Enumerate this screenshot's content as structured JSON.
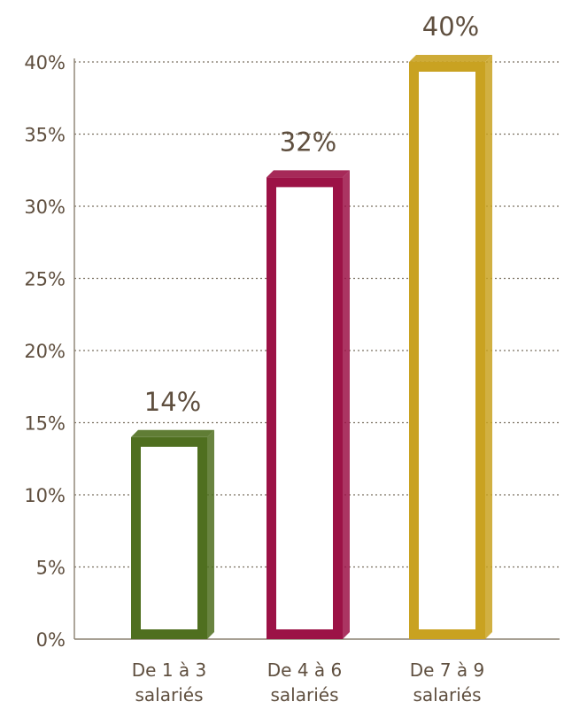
{
  "chart_data": {
    "type": "bar",
    "categories": [
      [
        "De 1 à 3",
        "salariés"
      ],
      [
        "De 4 à 6",
        "salariés"
      ],
      [
        "De 7 à 9",
        "salariés"
      ]
    ],
    "values": [
      14,
      32,
      40
    ],
    "value_labels": [
      "14%",
      "32%",
      "40%"
    ],
    "colors": [
      "#4f6f1f",
      "#9c1246",
      "#c9a221"
    ],
    "title": "",
    "xlabel": "",
    "ylabel": "",
    "ylim": [
      0,
      40
    ],
    "yticks": [
      0,
      5,
      10,
      15,
      20,
      25,
      30,
      35,
      40
    ],
    "ytick_labels": [
      "0%",
      "5%",
      "10%",
      "15%",
      "20%",
      "25%",
      "30%",
      "35%",
      "40%"
    ],
    "grid": true,
    "grid_style": "dotted",
    "legend": false,
    "axis_color": "#8a8070",
    "grid_color": "#7a7060",
    "text_color": "#5f4f3f"
  }
}
